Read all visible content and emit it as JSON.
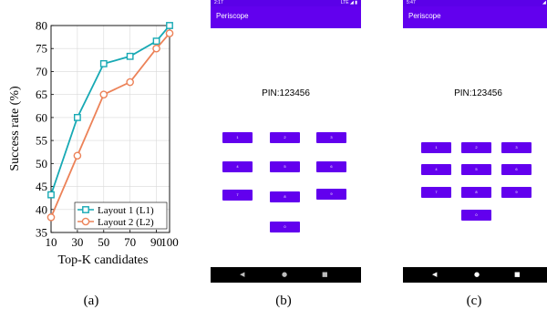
{
  "chart_data": {
    "type": "line",
    "title": "",
    "xlabel": "Top-K candidates",
    "ylabel": "Success rate (%)",
    "x": [
      10,
      30,
      50,
      70,
      90,
      100
    ],
    "xticks": [
      "10",
      "30",
      "50",
      "70",
      "90",
      "100"
    ],
    "yticks": [
      "35",
      "40",
      "45",
      "50",
      "55",
      "60",
      "65",
      "70",
      "75",
      "80"
    ],
    "ylim": [
      35,
      80
    ],
    "grid": true,
    "legend_position": "bottom-right",
    "series": [
      {
        "name": "Layout 1 (L1)",
        "color": "#17a9b4",
        "marker": "square",
        "values": [
          43.2,
          60.0,
          71.7,
          73.3,
          76.6,
          80.0
        ]
      },
      {
        "name": "Layout 2 (L2)",
        "color": "#ec8258",
        "marker": "circle",
        "values": [
          38.3,
          51.7,
          65.0,
          67.7,
          75.0,
          78.3
        ]
      }
    ]
  },
  "captions": {
    "a": "(a)",
    "b": "(b)",
    "c": "(c)"
  },
  "phone_b": {
    "time": "2:17",
    "status_icons": "LTE ◢ ▮",
    "app_title": "Periscope",
    "pin_text": "PIN:123456",
    "keys": [
      "1",
      "2",
      "3",
      "4",
      "5",
      "6",
      "7",
      "8",
      "9",
      "0"
    ],
    "nav": {
      "back": "◀",
      "home": "●",
      "recents": "■"
    }
  },
  "phone_c": {
    "time": "5:47",
    "status_icons": "◢ ▮",
    "app_title": "Periscope",
    "pin_text": "PIN:123456",
    "keys": [
      "1",
      "2",
      "3",
      "4",
      "5",
      "6",
      "7",
      "8",
      "9",
      "0"
    ],
    "nav": {
      "back": "◀",
      "home": "●",
      "recents": "■"
    }
  },
  "colors": {
    "accent": "#6200ee",
    "status_bar": "#5b00e8"
  }
}
